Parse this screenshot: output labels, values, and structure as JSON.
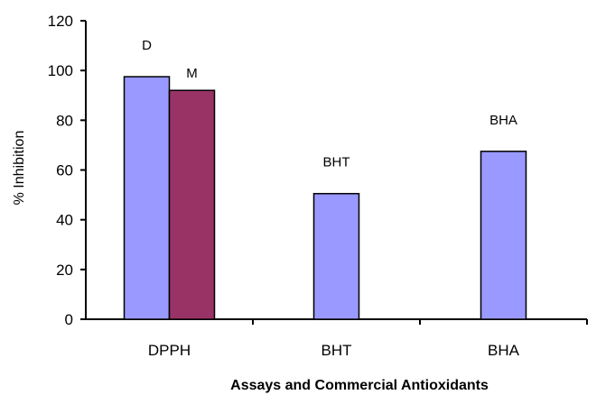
{
  "chart_data": {
    "type": "bar",
    "title": "",
    "xlabel": "Assays and Commercial Antioxidants",
    "ylabel": "% Inhibition",
    "ylim": [
      0,
      120
    ],
    "yticks": [
      "0",
      "20",
      "40",
      "60",
      "80",
      "100",
      "120"
    ],
    "categories": [
      "DPPH",
      "BHT",
      "BHA"
    ],
    "bars": [
      {
        "category": "DPPH",
        "label": "D",
        "value": 97.5,
        "color": "#9999ff"
      },
      {
        "category": "DPPH",
        "label": "M",
        "value": 92,
        "color": "#993366"
      },
      {
        "category": "BHT",
        "label": "BHT",
        "value": 50.5,
        "color": "#9999ff"
      },
      {
        "category": "BHA",
        "label": "BHA",
        "value": 67.5,
        "color": "#9999ff"
      }
    ],
    "grid": false,
    "legend": "none"
  }
}
